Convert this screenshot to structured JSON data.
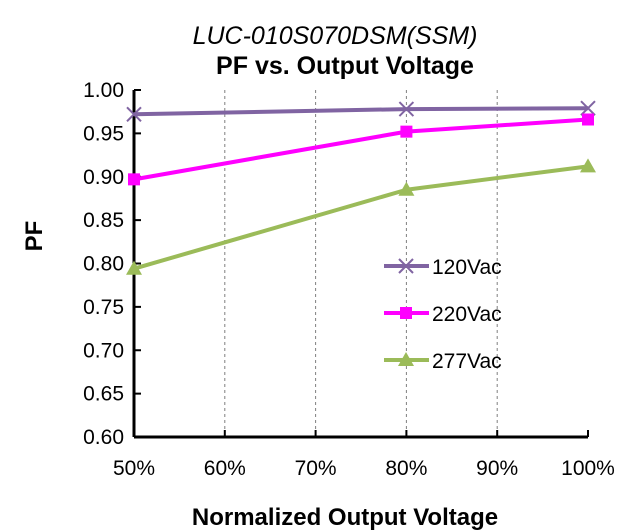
{
  "chart_data": {
    "type": "line",
    "title_model": "LUC-010S070DSM(SSM)",
    "title": "PF vs. Output Voltage",
    "xlabel": "Normalized Output Voltage",
    "ylabel": "PF",
    "x": [
      50,
      80,
      100
    ],
    "x_ticks": [
      "50%",
      "60%",
      "70%",
      "80%",
      "90%",
      "100%"
    ],
    "y_ticks": [
      "1.00",
      "0.95",
      "0.90",
      "0.85",
      "0.80",
      "0.75",
      "0.70",
      "0.65",
      "0.60"
    ],
    "xlim": [
      50,
      100
    ],
    "ylim": [
      0.6,
      1.0
    ],
    "grid": "vertical dashed",
    "legend_position": "center-right",
    "series": [
      {
        "name": "120Vac",
        "values": [
          0.972,
          0.978,
          0.979
        ],
        "color": "#8064A2",
        "marker": "x"
      },
      {
        "name": "220Vac",
        "values": [
          0.897,
          0.952,
          0.966
        ],
        "color": "#FF00FF",
        "marker": "square"
      },
      {
        "name": "277Vac",
        "values": [
          0.794,
          0.885,
          0.912
        ],
        "color": "#9BBB59",
        "marker": "triangle"
      }
    ]
  }
}
